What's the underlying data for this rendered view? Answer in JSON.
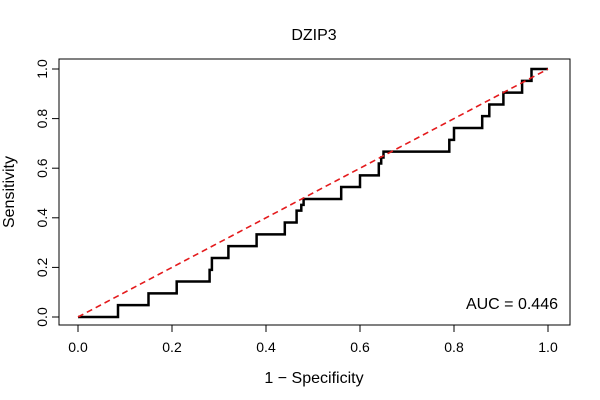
{
  "chart_data": {
    "type": "line",
    "title": "DZIP3",
    "xlabel": "1 − Specificity",
    "ylabel": "Sensitivity",
    "xlim": [
      0,
      1
    ],
    "ylim": [
      0,
      1
    ],
    "x_ticks": [
      "0.0",
      "0.2",
      "0.4",
      "0.6",
      "0.8",
      "1.0"
    ],
    "y_ticks": [
      "0.0",
      "0.2",
      "0.4",
      "0.6",
      "0.8",
      "1.0"
    ],
    "grid": false,
    "annotation": "AUC = 0.446",
    "series": [
      {
        "color": "#000000",
        "style": "step",
        "x": [
          0.0,
          0.085,
          0.085,
          0.15,
          0.15,
          0.21,
          0.21,
          0.28,
          0.28,
          0.285,
          0.285,
          0.32,
          0.32,
          0.38,
          0.38,
          0.44,
          0.44,
          0.465,
          0.465,
          0.475,
          0.475,
          0.48,
          0.48,
          0.56,
          0.56,
          0.6,
          0.6,
          0.64,
          0.64,
          0.645,
          0.645,
          0.65,
          0.65,
          0.79,
          0.79,
          0.8,
          0.8,
          0.86,
          0.86,
          0.875,
          0.875,
          0.905,
          0.905,
          0.945,
          0.945,
          0.965,
          0.965,
          1.0
        ],
        "y": [
          0.0,
          0.0,
          0.048,
          0.048,
          0.095,
          0.095,
          0.143,
          0.143,
          0.19,
          0.19,
          0.238,
          0.238,
          0.286,
          0.286,
          0.333,
          0.333,
          0.381,
          0.381,
          0.429,
          0.429,
          0.452,
          0.452,
          0.476,
          0.476,
          0.524,
          0.524,
          0.571,
          0.571,
          0.619,
          0.619,
          0.643,
          0.643,
          0.667,
          0.667,
          0.714,
          0.714,
          0.762,
          0.762,
          0.81,
          0.81,
          0.857,
          0.857,
          0.905,
          0.905,
          0.952,
          0.952,
          1.0,
          1.0
        ]
      },
      {
        "color": "#e41a1c",
        "style": "dashed",
        "x": [
          0,
          1
        ],
        "y": [
          0,
          1
        ]
      }
    ]
  }
}
